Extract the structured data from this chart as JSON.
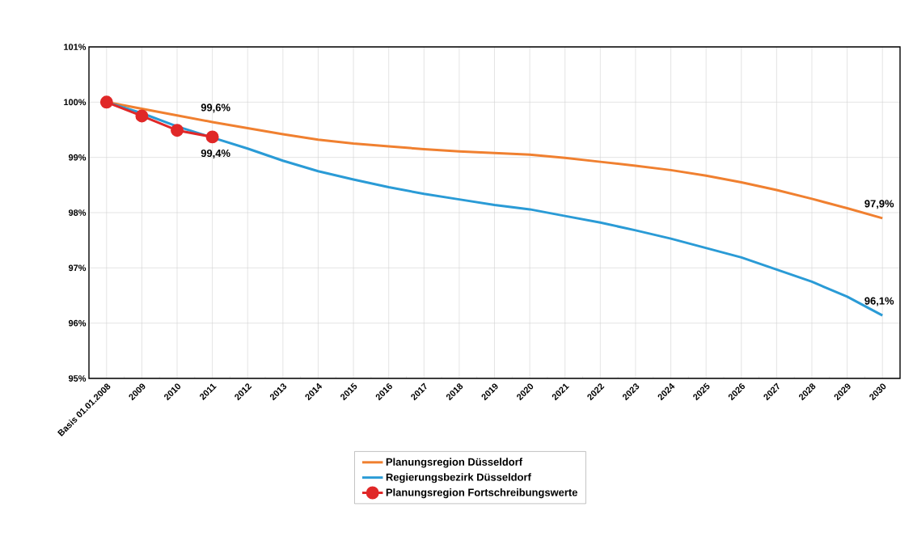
{
  "chart_data": {
    "type": "line",
    "categories": [
      "Basis 01.01.2008",
      "2009",
      "2010",
      "2011",
      "2012",
      "2013",
      "2014",
      "2015",
      "2016",
      "2017",
      "2018",
      "2019",
      "2020",
      "2021",
      "2022",
      "2023",
      "2024",
      "2025",
      "2026",
      "2027",
      "2028",
      "2029",
      "2030"
    ],
    "series": [
      {
        "name": "Planungsregion Düsseldorf",
        "color": "#f08030",
        "values": [
          100,
          99.88,
          99.76,
          99.64,
          99.53,
          99.42,
          99.32,
          99.25,
          99.2,
          99.15,
          99.11,
          99.08,
          99.05,
          98.99,
          98.92,
          98.85,
          98.77,
          98.67,
          98.55,
          98.41,
          98.25,
          98.08,
          97.9
        ]
      },
      {
        "name": "Regierungsbezirk Düsseldorf",
        "color": "#2a9bd6",
        "values": [
          100,
          99.8,
          99.56,
          99.36,
          99.16,
          98.94,
          98.75,
          98.6,
          98.46,
          98.34,
          98.24,
          98.14,
          98.06,
          97.94,
          97.82,
          97.68,
          97.53,
          97.36,
          97.19,
          96.97,
          96.75,
          96.48,
          96.14
        ]
      },
      {
        "name": "Planungsregion  Fortschreibungswerte",
        "color": "#e02828",
        "marker": "circle",
        "values": [
          100,
          99.75,
          99.49,
          99.37,
          null,
          null,
          null,
          null,
          null,
          null,
          null,
          null,
          null,
          null,
          null,
          null,
          null,
          null,
          null,
          null,
          null,
          null,
          null
        ]
      }
    ],
    "ylim": [
      95,
      101
    ],
    "yticks": [
      {
        "value": 95,
        "label": "95%"
      },
      {
        "value": 96,
        "label": "96%"
      },
      {
        "value": 97,
        "label": "97%"
      },
      {
        "value": 98,
        "label": "98%"
      },
      {
        "value": 99,
        "label": "99%"
      },
      {
        "value": 100,
        "label": "100%"
      },
      {
        "value": 101,
        "label": "101%"
      }
    ],
    "grid": true,
    "legend": "bottom",
    "annotations": [
      {
        "text": "99,6%",
        "x": "2011",
        "y": 99.64
      },
      {
        "text": "99,4%",
        "x": "2011",
        "y": 99.37
      },
      {
        "text": "97,9%",
        "x": "2030",
        "y": 97.9
      },
      {
        "text": "96,1%",
        "x": "2030",
        "y": 96.14
      }
    ]
  }
}
